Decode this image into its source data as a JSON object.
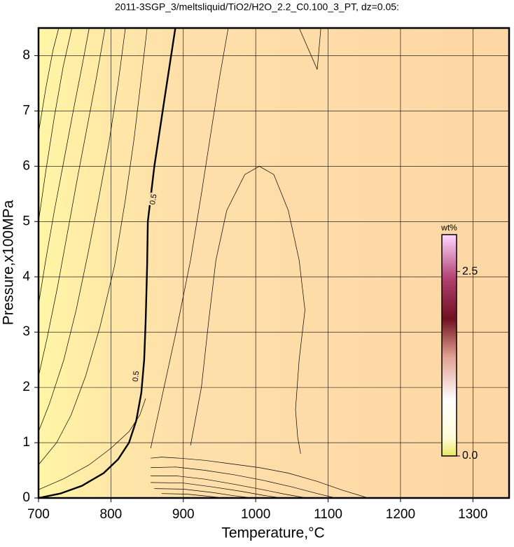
{
  "chart_data": {
    "type": "contour",
    "title": "2011-3SGP_3/meltsliquid/TiO2/H2O_2.2_C0.100_3_PT, dz=0.05:",
    "x_label": "Temperature,°C",
    "y_label": "Pressure,x100MPa",
    "xlim": [
      700,
      1350
    ],
    "ylim": [
      0,
      8.5
    ],
    "xticks": [
      700,
      800,
      900,
      1000,
      1100,
      1200,
      1300
    ],
    "yticks": [
      0,
      1,
      2,
      3,
      4,
      5,
      6,
      7,
      8
    ],
    "grid": true,
    "contours": [
      {
        "label": "0.5",
        "bold": true,
        "x": [
          700,
          730,
          760,
          790,
          810,
          825,
          835,
          842,
          846,
          848,
          850,
          851,
          860,
          875,
          889
        ],
        "y": [
          0,
          0.08,
          0.22,
          0.45,
          0.7,
          1.0,
          1.4,
          1.9,
          2.5,
          3.2,
          4.2,
          5.0,
          6.0,
          7.3,
          8.5
        ]
      },
      {
        "x": [
          700,
          725,
          745,
          765,
          785,
          805,
          820,
          832,
          842,
          850
        ],
        "y": [
          0.6,
          1.0,
          1.5,
          2.2,
          3.1,
          4.2,
          5.4,
          6.5,
          7.6,
          8.5
        ]
      },
      {
        "x": [
          700,
          715,
          735,
          752,
          768,
          783,
          797,
          810,
          820
        ],
        "y": [
          1.2,
          1.7,
          2.5,
          3.4,
          4.4,
          5.4,
          6.4,
          7.5,
          8.5
        ]
      },
      {
        "x": [
          700,
          712,
          726,
          740,
          754,
          767,
          780,
          792
        ],
        "y": [
          2.2,
          2.9,
          3.8,
          4.8,
          5.8,
          6.7,
          7.6,
          8.5
        ]
      },
      {
        "x": [
          700,
          710,
          722,
          735,
          748,
          760,
          770
        ],
        "y": [
          3.5,
          4.3,
          5.2,
          6.1,
          7.0,
          7.8,
          8.5
        ]
      },
      {
        "x": [
          700,
          710,
          722,
          734,
          746
        ],
        "y": [
          5.0,
          5.9,
          6.9,
          7.8,
          8.5
        ]
      },
      {
        "x": [
          700,
          710,
          720,
          728
        ],
        "y": [
          6.6,
          7.4,
          8.1,
          8.5
        ]
      },
      {
        "x": [
          700,
          735,
          770,
          800,
          825,
          840,
          848
        ],
        "y": [
          0.15,
          0.35,
          0.6,
          0.9,
          1.2,
          1.5,
          1.8
        ]
      },
      {
        "x": [
          855,
          870,
          895,
          930,
          965,
          1005,
          1045,
          1085,
          1120,
          1155
        ],
        "y": [
          0.72,
          0.74,
          0.72,
          0.68,
          0.62,
          0.55,
          0.45,
          0.3,
          0.14,
          0
        ]
      },
      {
        "x": [
          855,
          890,
          930,
          970,
          1010,
          1050,
          1085,
          1110
        ],
        "y": [
          0.55,
          0.56,
          0.5,
          0.42,
          0.32,
          0.2,
          0.08,
          0
        ]
      },
      {
        "x": [
          855,
          890,
          930,
          970,
          1010,
          1040,
          1070
        ],
        "y": [
          0.4,
          0.4,
          0.34,
          0.25,
          0.15,
          0.07,
          0
        ]
      },
      {
        "x": [
          855,
          900,
          940,
          980,
          1010,
          1035
        ],
        "y": [
          0.28,
          0.27,
          0.2,
          0.12,
          0.05,
          0
        ]
      },
      {
        "x": [
          860,
          900,
          940,
          970,
          995
        ],
        "y": [
          0.17,
          0.16,
          0.1,
          0.04,
          0
        ]
      },
      {
        "x": [
          870,
          905,
          935,
          955
        ],
        "y": [
          0.08,
          0.07,
          0.03,
          0
        ]
      },
      {
        "x": [
          855,
          870,
          890,
          910,
          925,
          938,
          950,
          962
        ],
        "y": [
          0.9,
          1.8,
          3.0,
          4.3,
          5.5,
          6.6,
          7.6,
          8.5
        ]
      },
      {
        "x": [
          910,
          925,
          935,
          945,
          960,
          985,
          1005,
          1025,
          1045,
          1060,
          1068,
          1060,
          1055,
          1058,
          1062
        ],
        "y": [
          0.95,
          2.0,
          3.2,
          4.3,
          5.2,
          5.85,
          6.0,
          5.85,
          5.2,
          4.3,
          3.4,
          2.5,
          1.6,
          1.1,
          0.8
        ]
      },
      {
        "x": [
          1060,
          1085,
          1090
        ],
        "y": [
          8.5,
          7.75,
          8.5
        ]
      }
    ],
    "colorbar": {
      "label": "wt%",
      "clim": [
        0,
        3.0
      ],
      "ticks": [
        {
          "value": 0,
          "label": "0.0"
        },
        2.5
      ]
    }
  }
}
